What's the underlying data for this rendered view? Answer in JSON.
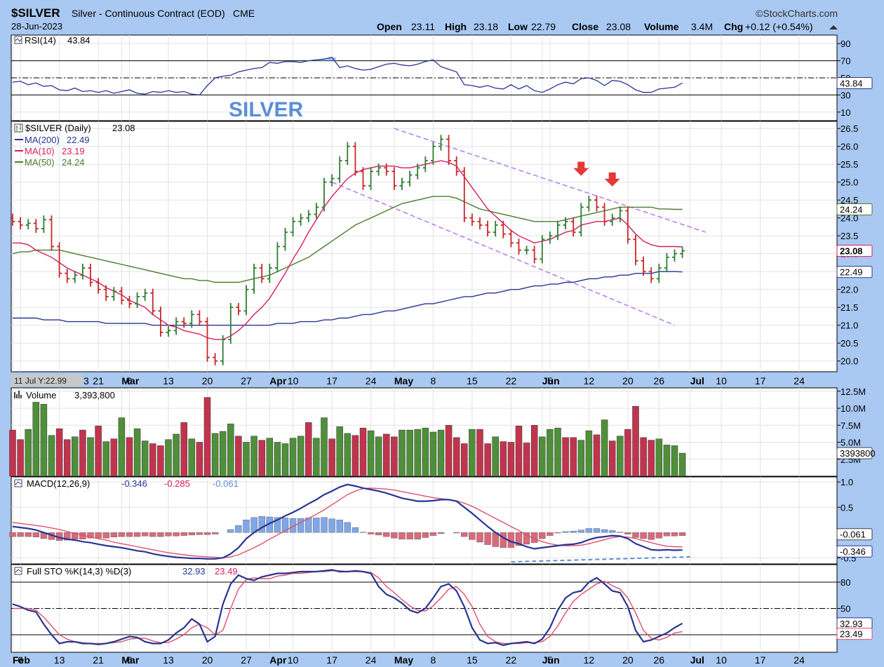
{
  "header": {
    "symbol": "$SILVER",
    "description": "Silver - Continuous Contract (EOD)",
    "exchange": "CME",
    "date": "28-Jun-2023",
    "brand": "©StockCharts.com",
    "open_label": "Open",
    "open": "23.11",
    "high_label": "High",
    "high": "23.18",
    "low_label": "Low",
    "low": "22.79",
    "close_label": "Close",
    "close": "23.08",
    "volume_label": "Volume",
    "volume": "3.4M",
    "chg_label": "Chg",
    "chg": "+0.12 (+0.54%)"
  },
  "annotation": "SILVER",
  "hover_label": "11 Jul Y:22.99",
  "colors": {
    "background": "#a9c8f2",
    "panel": "#ffffff",
    "up_bar": "#2e7d32",
    "down_bar": "#c62828",
    "ma200": "#283593",
    "ma10": "#d81b60",
    "ma50": "#4a7c2c",
    "channel": "#b57bf0",
    "arrow": "#e53935",
    "macd_line": "#283593",
    "signal_line": "#e0506a",
    "hist_pos": "#7fa6e8",
    "hist_neg": "#d96a7a",
    "vol_up": "#4f8f3a",
    "vol_down": "#c2344d"
  },
  "x_axis": {
    "months": [
      {
        "label": "Feb",
        "day": 6
      },
      {
        "label": "Mar",
        "day": 6
      },
      {
        "label": "Apr",
        "day": 10
      },
      {
        "label": "May",
        "day": 8
      },
      {
        "label": "Jun",
        "day": 5
      },
      {
        "label": "Jul",
        "day": null
      }
    ],
    "ticks": [
      {
        "label": "Feb",
        "i": 0,
        "month": true
      },
      {
        "label": "6",
        "i": 1
      },
      {
        "label": "13",
        "i": 6
      },
      {
        "label": "21",
        "i": 11
      },
      {
        "label": "Mar",
        "i": 14,
        "month": true
      },
      {
        "label": "6",
        "i": 15
      },
      {
        "label": "13",
        "i": 20
      },
      {
        "label": "20",
        "i": 25
      },
      {
        "label": "27",
        "i": 30
      },
      {
        "label": "Apr",
        "i": 33,
        "month": true
      },
      {
        "label": "10",
        "i": 36
      },
      {
        "label": "17",
        "i": 41
      },
      {
        "label": "24",
        "i": 46
      },
      {
        "label": "May",
        "i": 49,
        "month": true
      },
      {
        "label": "8",
        "i": 54
      },
      {
        "label": "15",
        "i": 59
      },
      {
        "label": "22",
        "i": 64
      },
      {
        "label": "Jun",
        "i": 68,
        "month": true
      },
      {
        "label": "5",
        "i": 69
      },
      {
        "label": "12",
        "i": 74
      },
      {
        "label": "20",
        "i": 79
      },
      {
        "label": "26",
        "i": 83
      },
      {
        "label": "Jul",
        "i": 87,
        "month": true
      },
      {
        "label": "10",
        "i": 91
      },
      {
        "label": "17",
        "i": 96
      },
      {
        "label": "24",
        "i": 101
      }
    ],
    "top_ticks_first": "3"
  },
  "chart_data": [
    {
      "type": "line",
      "name": "RSI(14)",
      "label": "RSI(14)",
      "value_text": "43.84",
      "ylim": [
        0,
        100
      ],
      "y_ticks": [
        "90",
        "70",
        "50",
        "30",
        "10"
      ],
      "y_tick_values": [
        90,
        70,
        50,
        30,
        10
      ],
      "levels": [
        70,
        30
      ],
      "dashed_levels": [
        50
      ],
      "last_value": "43.84",
      "values": [
        45,
        46,
        42,
        44,
        40,
        41,
        36,
        35,
        38,
        34,
        35,
        33,
        35,
        32,
        34,
        36,
        32,
        31,
        34,
        33,
        35,
        33,
        34,
        31,
        30,
        41,
        50,
        52,
        53,
        57,
        59,
        61,
        62,
        68,
        67,
        69,
        69,
        68,
        70,
        71,
        72,
        74,
        62,
        64,
        61,
        59,
        60,
        63,
        66,
        67,
        65,
        64,
        66,
        69,
        71,
        63,
        60,
        57,
        42,
        41,
        39,
        41,
        38,
        37,
        42,
        37,
        41,
        35,
        33,
        37,
        42,
        45,
        43,
        49,
        50,
        47,
        41,
        47,
        46,
        42,
        36,
        33,
        33,
        37,
        38,
        39,
        44
      ]
    },
    {
      "type": "bar",
      "name": "$SILVER (Daily)",
      "label": "$SILVER (Daily)",
      "value_text": "23.08",
      "ylim": [
        19.7,
        26.7
      ],
      "y_ticks": [
        "26.5",
        "26.0",
        "25.5",
        "25.0",
        "24.5",
        "24.0",
        "23.5",
        "23.0",
        "22.5",
        "22.0",
        "21.5",
        "21.0",
        "20.5",
        "20.0"
      ],
      "y_tick_values": [
        26.5,
        26.0,
        25.5,
        25.0,
        24.5,
        24.0,
        23.5,
        23.0,
        22.5,
        22.0,
        21.5,
        21.0,
        20.5,
        20.0
      ],
      "closes": [
        23.9,
        23.8,
        23.85,
        23.7,
        23.95,
        23.2,
        22.45,
        22.3,
        22.4,
        22.6,
        22.2,
        22.0,
        21.8,
        21.95,
        21.7,
        21.6,
        21.8,
        21.9,
        21.4,
        20.8,
        20.85,
        21.1,
        21.05,
        21.3,
        21.1,
        20.1,
        20.0,
        20.6,
        21.5,
        21.4,
        22.0,
        22.6,
        22.3,
        22.6,
        23.2,
        23.6,
        23.9,
        24.0,
        24.1,
        24.3,
        25.0,
        25.1,
        25.6,
        26.0,
        25.3,
        24.9,
        25.3,
        25.4,
        25.3,
        24.9,
        25.0,
        25.2,
        25.4,
        25.6,
        26.0,
        26.2,
        25.6,
        25.3,
        24.0,
        23.9,
        23.8,
        23.6,
        23.8,
        23.55,
        23.3,
        23.1,
        23.1,
        22.85,
        23.4,
        23.5,
        23.8,
        23.9,
        23.6,
        24.3,
        24.5,
        24.3,
        23.9,
        24.0,
        24.2,
        23.4,
        22.8,
        22.5,
        22.3,
        22.6,
        22.9,
        23.0,
        23.08
      ],
      "ma10": [
        23.3,
        23.3,
        23.25,
        23.1,
        23.0,
        22.9,
        22.75,
        22.6,
        22.5,
        22.4,
        22.3,
        22.2,
        22.05,
        21.95,
        21.85,
        21.7,
        21.6,
        21.5,
        21.3,
        21.15,
        21.0,
        20.95,
        20.85,
        20.8,
        20.75,
        20.65,
        20.6,
        20.6,
        20.7,
        20.85,
        21.05,
        21.3,
        21.5,
        21.75,
        22.1,
        22.45,
        22.85,
        23.2,
        23.6,
        23.95,
        24.3,
        24.6,
        24.85,
        25.1,
        25.25,
        25.35,
        25.4,
        25.45,
        25.45,
        25.45,
        25.4,
        25.4,
        25.45,
        25.5,
        25.55,
        25.6,
        25.55,
        25.45,
        25.15,
        24.85,
        24.55,
        24.25,
        24.05,
        23.85,
        23.65,
        23.5,
        23.4,
        23.3,
        23.35,
        23.4,
        23.5,
        23.6,
        23.65,
        23.8,
        23.85,
        23.9,
        23.9,
        23.95,
        24.0,
        23.8,
        23.55,
        23.35,
        23.25,
        23.2,
        23.2,
        23.2,
        23.19
      ],
      "ma50": [
        23.0,
        23.05,
        23.05,
        23.1,
        23.1,
        23.1,
        23.1,
        23.05,
        23.0,
        22.95,
        22.9,
        22.85,
        22.8,
        22.75,
        22.7,
        22.65,
        22.6,
        22.55,
        22.5,
        22.45,
        22.4,
        22.35,
        22.3,
        22.3,
        22.25,
        22.25,
        22.2,
        22.2,
        22.2,
        22.2,
        22.25,
        22.3,
        22.35,
        22.4,
        22.5,
        22.6,
        22.7,
        22.8,
        22.9,
        23.05,
        23.2,
        23.35,
        23.5,
        23.65,
        23.8,
        23.9,
        24.0,
        24.1,
        24.2,
        24.3,
        24.4,
        24.45,
        24.5,
        24.55,
        24.6,
        24.6,
        24.6,
        24.55,
        24.45,
        24.35,
        24.25,
        24.2,
        24.15,
        24.1,
        24.05,
        24.0,
        23.95,
        23.9,
        23.9,
        23.9,
        23.9,
        23.95,
        24.0,
        24.05,
        24.1,
        24.15,
        24.2,
        24.25,
        24.3,
        24.3,
        24.3,
        24.3,
        24.3,
        24.25,
        24.25,
        24.24,
        24.24
      ],
      "ma200": [
        21.2,
        21.2,
        21.2,
        21.2,
        21.15,
        21.15,
        21.15,
        21.1,
        21.1,
        21.1,
        21.1,
        21.1,
        21.05,
        21.05,
        21.05,
        21.05,
        21.05,
        21.05,
        21.0,
        21.0,
        21.0,
        21.0,
        21.0,
        21.0,
        21.0,
        21.0,
        21.0,
        21.0,
        21.0,
        21.0,
        21.0,
        21.0,
        21.0,
        21.0,
        21.05,
        21.05,
        21.05,
        21.1,
        21.1,
        21.1,
        21.15,
        21.15,
        21.2,
        21.2,
        21.25,
        21.3,
        21.3,
        21.35,
        21.4,
        21.4,
        21.45,
        21.5,
        21.55,
        21.6,
        21.6,
        21.65,
        21.7,
        21.75,
        21.8,
        21.8,
        21.85,
        21.9,
        21.9,
        21.95,
        22.0,
        22.0,
        22.05,
        22.1,
        22.1,
        22.15,
        22.15,
        22.2,
        22.2,
        22.25,
        22.3,
        22.3,
        22.35,
        22.35,
        22.4,
        22.4,
        22.45,
        22.45,
        22.45,
        22.5,
        22.5,
        22.5,
        22.49
      ],
      "ma200_label": "MA(200)",
      "ma200_value": "22.49",
      "ma10_label": "MA(10)",
      "ma10_value": "23.19",
      "ma50_label": "MA(50)",
      "ma50_value": "24.24",
      "channel_upper": [
        [
          49,
          26.5
        ],
        [
          89,
          23.6
        ]
      ],
      "channel_lower": [
        [
          41,
          25.0
        ],
        [
          85,
          21.0
        ]
      ],
      "arrows_at": [
        73,
        77
      ]
    },
    {
      "type": "bar",
      "name": "Volume",
      "label": "Volume",
      "value_text": "3,393,800",
      "y_ticks": [
        "12.5M",
        "10.0M",
        "7.5M",
        "5.0M",
        "2.5M"
      ],
      "y_tick_values": [
        12.5,
        10.0,
        7.5,
        5.0,
        2.5
      ],
      "last_value": "3393800",
      "ylim": [
        0,
        13
      ],
      "values": [
        6.8,
        5.4,
        6.9,
        10.9,
        10.6,
        6.0,
        7.0,
        5.4,
        5.8,
        6.8,
        5.7,
        7.4,
        5.1,
        5.5,
        8.6,
        5.7,
        7.0,
        5.2,
        4.8,
        4.5,
        5.4,
        6.2,
        7.9,
        5.5,
        5.0,
        11.6,
        6.3,
        6.6,
        7.7,
        5.9,
        5.0,
        5.9,
        5.3,
        5.6,
        5.0,
        4.8,
        5.6,
        5.9,
        7.9,
        5.6,
        8.6,
        5.5,
        7.3,
        6.3,
        6.0,
        7.1,
        6.7,
        5.8,
        6.2,
        5.8,
        6.8,
        6.8,
        6.9,
        7.1,
        6.5,
        6.8,
        7.5,
        5.7,
        4.8,
        6.9,
        6.9,
        4.8,
        5.8,
        5.1,
        5.0,
        7.4,
        4.9,
        7.5,
        5.8,
        6.9,
        7.1,
        5.7,
        5.7,
        5.3,
        6.7,
        6.1,
        8.3,
        5.2,
        5.9,
        6.9,
        10.3,
        5.7,
        5.3,
        5.5,
        4.6,
        4.5,
        3.39
      ],
      "up": [
        false,
        false,
        true,
        true,
        true,
        true,
        false,
        false,
        true,
        false,
        true,
        false,
        true,
        false,
        true,
        false,
        true,
        true,
        false,
        false,
        true,
        true,
        false,
        true,
        false,
        false,
        true,
        true,
        true,
        false,
        true,
        true,
        false,
        true,
        true,
        true,
        true,
        true,
        false,
        true,
        true,
        false,
        true,
        true,
        false,
        false,
        true,
        true,
        false,
        false,
        true,
        true,
        true,
        true,
        true,
        true,
        false,
        false,
        false,
        true,
        false,
        false,
        true,
        false,
        false,
        false,
        false,
        false,
        true,
        true,
        true,
        false,
        false,
        true,
        true,
        false,
        true,
        false,
        true,
        false,
        false,
        false,
        false,
        true,
        true,
        true,
        true
      ]
    },
    {
      "type": "line",
      "name": "MACD(12,26,9)",
      "label": "MACD(12,26,9)",
      "macd_value": "-0.346",
      "signal_value": "-0.285",
      "hist_value": "-0.061",
      "ylim": [
        -0.62,
        1.1
      ],
      "y_ticks": [
        "1.0",
        "0.5",
        "-0.5"
      ],
      "y_tick_values": [
        1.0,
        0.5,
        -0.5
      ],
      "macd": [
        0.12,
        0.1,
        0.08,
        0.05,
        0.0,
        -0.05,
        -0.1,
        -0.13,
        -0.15,
        -0.18,
        -0.2,
        -0.23,
        -0.26,
        -0.28,
        -0.3,
        -0.33,
        -0.36,
        -0.38,
        -0.42,
        -0.45,
        -0.47,
        -0.49,
        -0.5,
        -0.51,
        -0.51,
        -0.52,
        -0.52,
        -0.5,
        -0.42,
        -0.3,
        -0.12,
        0.0,
        0.1,
        0.18,
        0.25,
        0.33,
        0.4,
        0.48,
        0.57,
        0.65,
        0.75,
        0.82,
        0.9,
        0.95,
        0.92,
        0.88,
        0.85,
        0.82,
        0.78,
        0.73,
        0.68,
        0.65,
        0.62,
        0.62,
        0.63,
        0.65,
        0.65,
        0.62,
        0.5,
        0.38,
        0.25,
        0.12,
        0.0,
        -0.1,
        -0.18,
        -0.22,
        -0.28,
        -0.32,
        -0.3,
        -0.28,
        -0.26,
        -0.24,
        -0.23,
        -0.2,
        -0.14,
        -0.1,
        -0.08,
        -0.06,
        -0.07,
        -0.12,
        -0.22,
        -0.28,
        -0.34,
        -0.35,
        -0.34,
        -0.35,
        -0.346
      ],
      "signal": [
        0.2,
        0.18,
        0.16,
        0.14,
        0.12,
        0.09,
        0.06,
        0.02,
        -0.02,
        -0.05,
        -0.09,
        -0.12,
        -0.15,
        -0.19,
        -0.22,
        -0.25,
        -0.28,
        -0.31,
        -0.34,
        -0.37,
        -0.4,
        -0.42,
        -0.44,
        -0.46,
        -0.47,
        -0.48,
        -0.49,
        -0.5,
        -0.48,
        -0.44,
        -0.37,
        -0.3,
        -0.22,
        -0.13,
        -0.05,
        0.04,
        0.12,
        0.2,
        0.28,
        0.36,
        0.45,
        0.55,
        0.65,
        0.75,
        0.82,
        0.87,
        0.88,
        0.87,
        0.86,
        0.84,
        0.81,
        0.78,
        0.75,
        0.72,
        0.69,
        0.67,
        0.65,
        0.63,
        0.58,
        0.52,
        0.44,
        0.36,
        0.28,
        0.2,
        0.12,
        0.04,
        -0.05,
        -0.12,
        -0.18,
        -0.22,
        -0.25,
        -0.26,
        -0.26,
        -0.25,
        -0.22,
        -0.18,
        -0.14,
        -0.1,
        -0.08,
        -0.09,
        -0.12,
        -0.16,
        -0.2,
        -0.24,
        -0.27,
        -0.28,
        -0.285
      ],
      "support_line": [
        [
          64,
          -0.58
        ],
        [
          87,
          -0.48
        ]
      ]
    },
    {
      "type": "line",
      "name": "Full STO %K(14,3) %D(3)",
      "label": "Full STO %K(14,3) %D(3)",
      "k_value": "32.93",
      "d_value": "23.49",
      "ylim": [
        0,
        100
      ],
      "y_ticks": [
        "80",
        "50",
        "32.93",
        "23.49"
      ],
      "y_tick_values": [
        80,
        50
      ],
      "levels": [
        80,
        20
      ],
      "dashed_levels": [
        50
      ],
      "k": [
        55,
        52,
        48,
        46,
        32,
        20,
        10,
        12,
        12,
        10,
        10,
        9,
        10,
        12,
        15,
        18,
        17,
        12,
        10,
        10,
        14,
        22,
        28,
        38,
        32,
        12,
        18,
        55,
        78,
        88,
        84,
        82,
        86,
        88,
        90,
        90,
        91,
        92,
        92,
        92,
        93,
        94,
        92,
        92,
        93,
        92,
        90,
        75,
        66,
        62,
        56,
        48,
        45,
        50,
        62,
        75,
        78,
        70,
        52,
        28,
        14,
        10,
        11,
        8,
        10,
        11,
        12,
        10,
        15,
        28,
        48,
        62,
        68,
        70,
        80,
        85,
        78,
        70,
        68,
        52,
        25,
        12,
        14,
        18,
        22,
        28,
        32.93
      ],
      "d": [
        50,
        50,
        50,
        48,
        40,
        30,
        20,
        15,
        12,
        11,
        10,
        10,
        10,
        11,
        12,
        15,
        16,
        16,
        13,
        11,
        11,
        15,
        20,
        28,
        32,
        28,
        20,
        25,
        50,
        72,
        83,
        85,
        84,
        84,
        87,
        88,
        90,
        90,
        91,
        92,
        92,
        93,
        93,
        92,
        92,
        92,
        91,
        85,
        75,
        68,
        60,
        53,
        48,
        47,
        53,
        62,
        72,
        75,
        66,
        52,
        32,
        18,
        12,
        10,
        10,
        10,
        11,
        11,
        12,
        18,
        30,
        45,
        58,
        66,
        72,
        78,
        81,
        76,
        72,
        62,
        45,
        25,
        16,
        14,
        17,
        22,
        23.49
      ]
    }
  ]
}
